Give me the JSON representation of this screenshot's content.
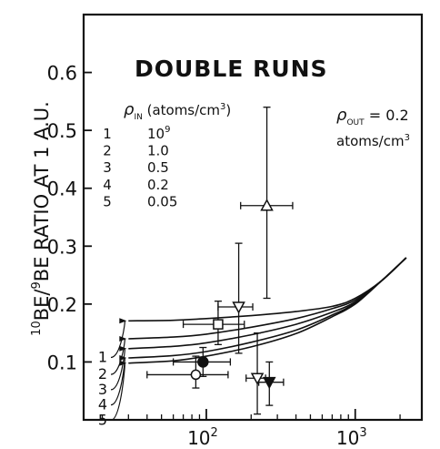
{
  "chart_data": {
    "type": "line",
    "title": "DOUBLE RUNS",
    "ylabel_prefix": "10",
    "ylabel_mid": "BE/",
    "ylabel_sup2": "9",
    "ylabel_suffix": "BE RATIO AT 1 A.U.",
    "xlabel": "",
    "x_scale": "log",
    "xlim": [
      15,
      2800
    ],
    "ylim": [
      0,
      0.7
    ],
    "grid": false,
    "x_ticks": [
      {
        "value": 100,
        "base": "10",
        "exp": "2"
      },
      {
        "value": 1000,
        "base": "10",
        "exp": "3"
      }
    ],
    "y_ticks": [
      {
        "value": 0.1,
        "label": "0.1"
      },
      {
        "value": 0.2,
        "label": "0.2"
      },
      {
        "value": 0.3,
        "label": "0.3"
      },
      {
        "value": 0.4,
        "label": "0.4"
      },
      {
        "value": 0.5,
        "label": "0.5"
      },
      {
        "value": 0.6,
        "label": "0.6"
      }
    ],
    "legend": {
      "header_rho": "ρ",
      "header_sub": "IN",
      "header_unit_a": " (atoms/cm",
      "header_unit_sup": "3",
      "header_unit_b": ")",
      "rows": [
        {
          "num": "1",
          "base": "10",
          "exp": "9"
        },
        {
          "num": "2",
          "base": "1.0",
          "exp": ""
        },
        {
          "num": "3",
          "base": "0.5",
          "exp": ""
        },
        {
          "num": "4",
          "base": "0.2",
          "exp": ""
        },
        {
          "num": "5",
          "base": "0.05",
          "exp": ""
        }
      ]
    },
    "annotation": {
      "rho": "ρ",
      "sub": "OUT",
      "value": " = 0.2",
      "unit": "atoms/cm",
      "unit_sup": "3"
    },
    "series": [
      {
        "label": "1",
        "x": [
          30,
          60,
          100,
          200,
          400,
          700,
          1000,
          1500,
          2200
        ],
        "y": [
          0.171,
          0.172,
          0.175,
          0.18,
          0.187,
          0.196,
          0.21,
          0.24,
          0.28
        ]
      },
      {
        "label": "2",
        "x": [
          30,
          60,
          100,
          200,
          400,
          700,
          1000,
          1500,
          2200
        ],
        "y": [
          0.14,
          0.143,
          0.148,
          0.16,
          0.175,
          0.192,
          0.207,
          0.24,
          0.28
        ]
      },
      {
        "label": "3",
        "x": [
          30,
          60,
          100,
          200,
          400,
          700,
          1000,
          1500,
          2200
        ],
        "y": [
          0.123,
          0.127,
          0.133,
          0.147,
          0.165,
          0.186,
          0.204,
          0.24,
          0.28
        ]
      },
      {
        "label": "4",
        "x": [
          30,
          60,
          100,
          200,
          400,
          700,
          1000,
          1500,
          2200
        ],
        "y": [
          0.107,
          0.111,
          0.118,
          0.134,
          0.155,
          0.181,
          0.202,
          0.24,
          0.28
        ]
      },
      {
        "label": "5",
        "x": [
          30,
          60,
          100,
          200,
          400,
          700,
          1000,
          1500,
          2200
        ],
        "y": [
          0.098,
          0.102,
          0.11,
          0.126,
          0.149,
          0.178,
          0.2,
          0.24,
          0.28
        ]
      }
    ],
    "data_points": [
      {
        "marker": "open-square",
        "x": 120,
        "y": 0.165,
        "x_err": [
          70,
          180
        ],
        "y_err": [
          0.13,
          0.205
        ]
      },
      {
        "marker": "open-downtriangle",
        "x": 165,
        "y": 0.195,
        "x_err": [
          120,
          205
        ],
        "y_err": [
          0.115,
          0.305
        ]
      },
      {
        "marker": "open-triangle",
        "x": 255,
        "y": 0.37,
        "x_err": [
          170,
          380
        ],
        "y_err": [
          0.21,
          0.54
        ]
      },
      {
        "marker": "filled-circle",
        "x": 95,
        "y": 0.1,
        "x_err": [
          60,
          145
        ],
        "y_err": [
          0.075,
          0.125
        ]
      },
      {
        "marker": "open-circle",
        "x": 85,
        "y": 0.078,
        "x_err": [
          40,
          140
        ],
        "y_err": [
          0.055,
          0.11
        ]
      },
      {
        "marker": "open-downtriangle",
        "x": 220,
        "y": 0.072,
        "x_err": [
          185,
          250
        ],
        "y_err": [
          0.01,
          0.15
        ]
      },
      {
        "marker": "filled-downtriangle",
        "x": 265,
        "y": 0.065,
        "x_err": [
          225,
          330
        ],
        "y_err": [
          0.025,
          0.1
        ]
      }
    ]
  }
}
